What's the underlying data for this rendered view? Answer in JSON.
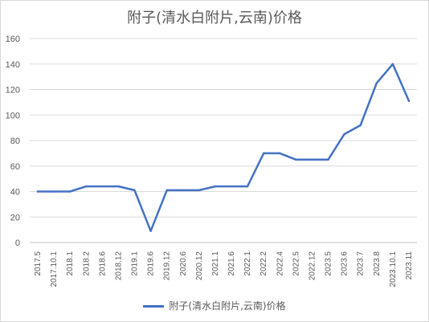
{
  "chart_data": {
    "type": "line",
    "title": "附子(清水白附片,云南)价格",
    "categories": [
      "2017.5",
      "2017.10.1",
      "2018.1",
      "2018.2",
      "2018.6",
      "2018.12",
      "2019.1",
      "2019.6",
      "2019.12",
      "2020.6",
      "2020.12",
      "2021.1",
      "2021.6",
      "2022.1",
      "2022.2",
      "2022.4",
      "2022.5",
      "2022.12",
      "2023.5",
      "2023.6",
      "2023.7",
      "2023.8",
      "2023.10.1",
      "2023.11"
    ],
    "series": [
      {
        "name": "附子(清水白附片,云南)价格",
        "color": "#4472c4",
        "values": [
          40,
          40,
          40,
          44,
          44,
          44,
          41,
          9,
          41,
          41,
          41,
          44,
          44,
          44,
          70,
          70,
          65,
          65,
          65,
          85,
          92,
          125,
          140,
          111
        ]
      }
    ],
    "yticks": [
      0,
      20,
      40,
      60,
      80,
      100,
      120,
      140,
      160
    ],
    "ylim": [
      0,
      160
    ],
    "grid": true,
    "legend": "bottom"
  }
}
